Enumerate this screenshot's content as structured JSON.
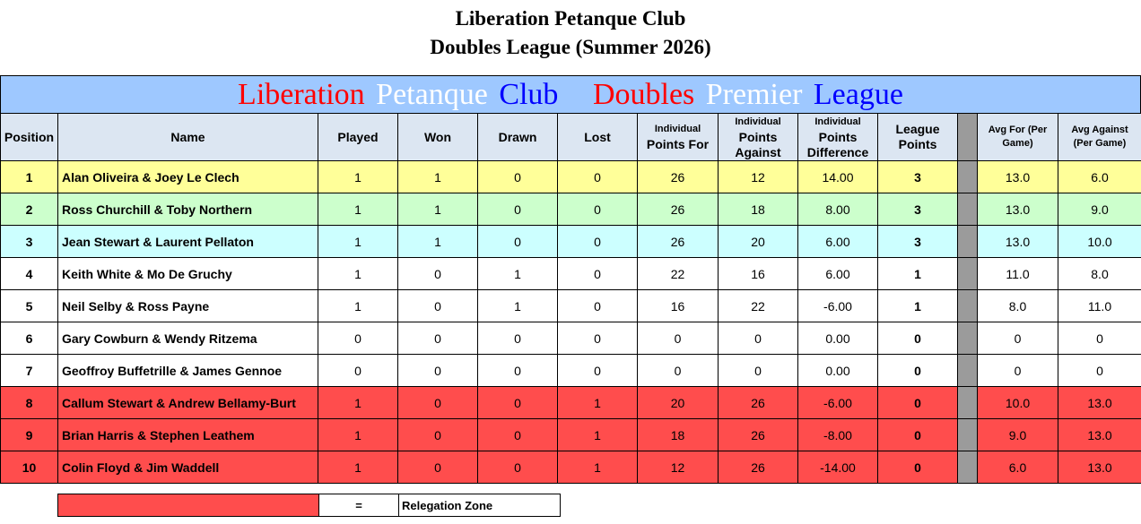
{
  "title_line1": "Liberation Petanque Club",
  "title_line2": "Doubles League (Summer 2026)",
  "banner": {
    "w1": "Liberation",
    "w2": "Petanque",
    "w3": "Club",
    "w4": "Doubles",
    "w5": "Premier",
    "w6": "League"
  },
  "colors": {
    "banner_bg": "#9ec8ff",
    "header_bg": "#dce6f2",
    "first": "#ffff99",
    "second": "#ccffcc",
    "third": "#ccffff",
    "relegation": "#ff4d4d",
    "separator": "#9b9b9b"
  },
  "headers": {
    "position": "Position",
    "name": "Name",
    "played": "Played",
    "won": "Won",
    "drawn": "Drawn",
    "lost": "Lost",
    "pf_a": "Individual",
    "pf_b": "Points For",
    "pa_a": "Individual",
    "pa_b": "Points",
    "pa_c": "Against",
    "pd_a": "Individual",
    "pd_b": "Points",
    "pd_c": "Difference",
    "lp_a": "League",
    "lp_b": "Points",
    "af_a": "Avg For (Per",
    "af_b": "Game)",
    "aa_a": "Avg Against",
    "aa_b": "(Per Game)"
  },
  "rows": [
    {
      "pos": "1",
      "name": "Alan Oliveira & Joey Le Clech",
      "played": "1",
      "won": "1",
      "drawn": "0",
      "lost": "0",
      "pf": "26",
      "pa": "12",
      "pd": "14.00",
      "lp": "3",
      "af": "13.0",
      "aa": "6.0"
    },
    {
      "pos": "2",
      "name": "Ross Churchill & Toby Northern",
      "played": "1",
      "won": "1",
      "drawn": "0",
      "lost": "0",
      "pf": "26",
      "pa": "18",
      "pd": "8.00",
      "lp": "3",
      "af": "13.0",
      "aa": "9.0"
    },
    {
      "pos": "3",
      "name": "Jean Stewart & Laurent Pellaton",
      "played": "1",
      "won": "1",
      "drawn": "0",
      "lost": "0",
      "pf": "26",
      "pa": "20",
      "pd": "6.00",
      "lp": "3",
      "af": "13.0",
      "aa": "10.0"
    },
    {
      "pos": "4",
      "name": "Keith White & Mo De Gruchy",
      "played": "1",
      "won": "0",
      "drawn": "1",
      "lost": "0",
      "pf": "22",
      "pa": "16",
      "pd": "6.00",
      "lp": "1",
      "af": "11.0",
      "aa": "8.0"
    },
    {
      "pos": "5",
      "name": "Neil Selby & Ross Payne",
      "played": "1",
      "won": "0",
      "drawn": "1",
      "lost": "0",
      "pf": "16",
      "pa": "22",
      "pd": "-6.00",
      "lp": "1",
      "af": "8.0",
      "aa": "11.0"
    },
    {
      "pos": "6",
      "name": "Gary Cowburn & Wendy Ritzema",
      "played": "0",
      "won": "0",
      "drawn": "0",
      "lost": "0",
      "pf": "0",
      "pa": "0",
      "pd": "0.00",
      "lp": "0",
      "af": "0",
      "aa": "0"
    },
    {
      "pos": "7",
      "name": "Geoffroy Buffetrille & James Gennoe",
      "played": "0",
      "won": "0",
      "drawn": "0",
      "lost": "0",
      "pf": "0",
      "pa": "0",
      "pd": "0.00",
      "lp": "0",
      "af": "0",
      "aa": "0"
    },
    {
      "pos": "8",
      "name": "Callum Stewart & Andrew Bellamy-Burt",
      "played": "1",
      "won": "0",
      "drawn": "0",
      "lost": "1",
      "pf": "20",
      "pa": "26",
      "pd": "-6.00",
      "lp": "0",
      "af": "10.0",
      "aa": "13.0"
    },
    {
      "pos": "9",
      "name": "Brian Harris & Stephen Leathem",
      "played": "1",
      "won": "0",
      "drawn": "0",
      "lost": "1",
      "pf": "18",
      "pa": "26",
      "pd": "-8.00",
      "lp": "0",
      "af": "9.0",
      "aa": "13.0"
    },
    {
      "pos": "10",
      "name": "Colin Floyd & Jim Waddell",
      "played": "1",
      "won": "0",
      "drawn": "0",
      "lost": "1",
      "pf": "12",
      "pa": "26",
      "pd": "-14.00",
      "lp": "0",
      "af": "6.0",
      "aa": "13.0"
    }
  ],
  "legend": {
    "equals": "=",
    "label": "Relegation  Zone"
  }
}
